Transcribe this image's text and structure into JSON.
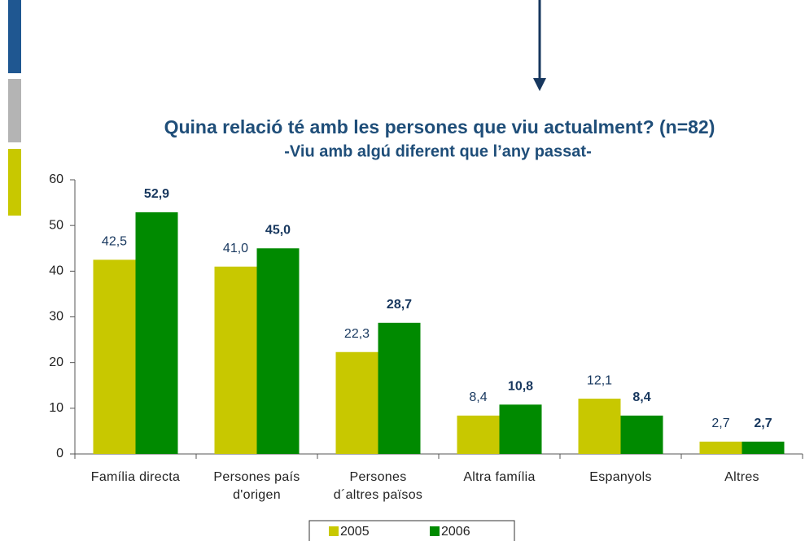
{
  "chart_data": {
    "type": "bar",
    "title": "Quina relació té amb les persones que viu actualment? (n=82)",
    "subtitle": "-Viu amb algú diferent que l’any passat-",
    "categories": [
      "Família directa",
      "Persones país\nd'origen",
      "Persones\nd´altres països",
      "Altra família",
      "Espanyols",
      "Altres"
    ],
    "series": [
      {
        "name": "2005",
        "color": "#c8c800",
        "values": [
          42.5,
          41.0,
          22.3,
          8.4,
          12.1,
          2.7
        ],
        "value_labels": [
          "42,5",
          "41,0",
          "22,3",
          "8,4",
          "12,1",
          "2,7"
        ]
      },
      {
        "name": "2006",
        "color": "#008a00",
        "values": [
          52.9,
          45.0,
          28.7,
          10.8,
          8.4,
          2.7
        ],
        "value_labels": [
          "52,9",
          "45,0",
          "28,7",
          "10,8",
          "8,4",
          "2,7"
        ]
      }
    ],
    "ylim": [
      0,
      60
    ],
    "yticks": [
      0,
      10,
      20,
      30,
      40,
      50,
      60
    ],
    "grid": false,
    "legend": "bottom"
  }
}
